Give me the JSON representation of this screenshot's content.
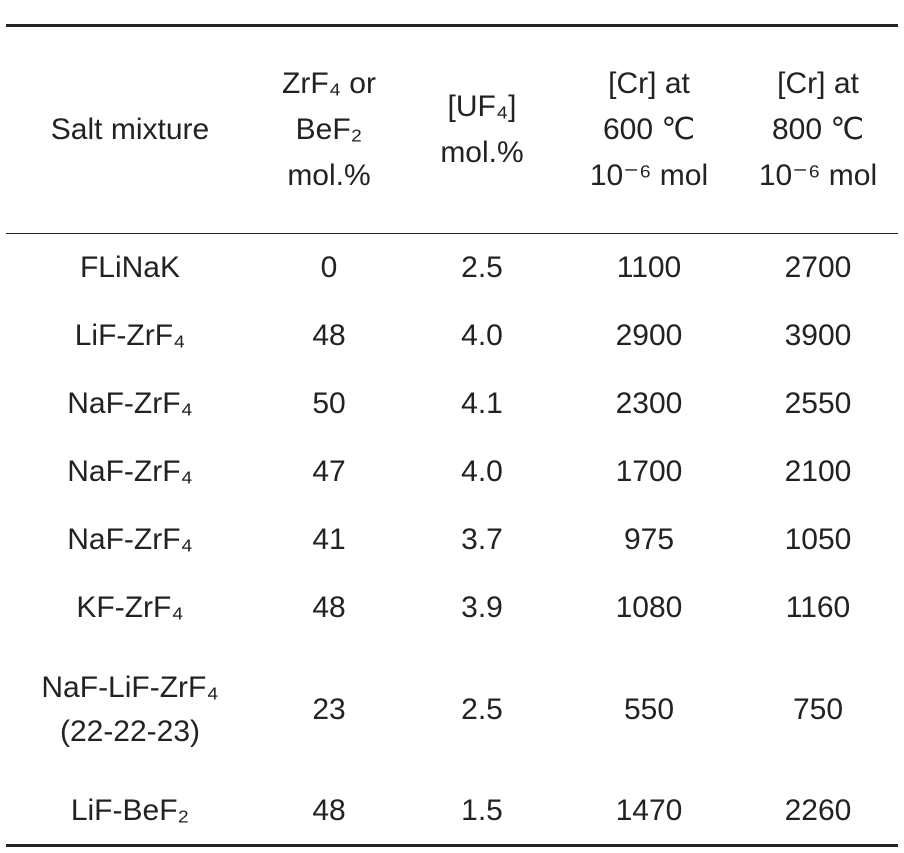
{
  "table": {
    "header": [
      [
        "Salt mixture"
      ],
      [
        "ZrF₄ or",
        "BeF₂",
        "mol.%"
      ],
      [
        "[UF₄]",
        "mol.%"
      ],
      [
        "[Cr] at",
        "600 ℃",
        "10⁻⁶ mol"
      ],
      [
        "[Cr] at",
        "800 ℃",
        "10⁻⁶ mol"
      ]
    ],
    "rows": [
      [
        "FLiNaK",
        "0",
        "2.5",
        "1100",
        "2700"
      ],
      [
        "LiF-ZrF₄",
        "48",
        "4.0",
        "2900",
        "3900"
      ],
      [
        "NaF-ZrF₄",
        "50",
        "4.1",
        "2300",
        "2550"
      ],
      [
        "NaF-ZrF₄",
        "47",
        "4.0",
        "1700",
        "2100"
      ],
      [
        "NaF-ZrF₄",
        "41",
        "3.7",
        "975",
        "1050"
      ],
      [
        "KF-ZrF₄",
        "48",
        "3.9",
        "1080",
        "1160"
      ],
      [
        [
          "NaF-LiF-ZrF₄",
          "(22-22-23)"
        ],
        "23",
        "2.5",
        "550",
        "750"
      ],
      [
        "LiF-BeF₂",
        "48",
        "1.5",
        "1470",
        "2260"
      ]
    ]
  }
}
